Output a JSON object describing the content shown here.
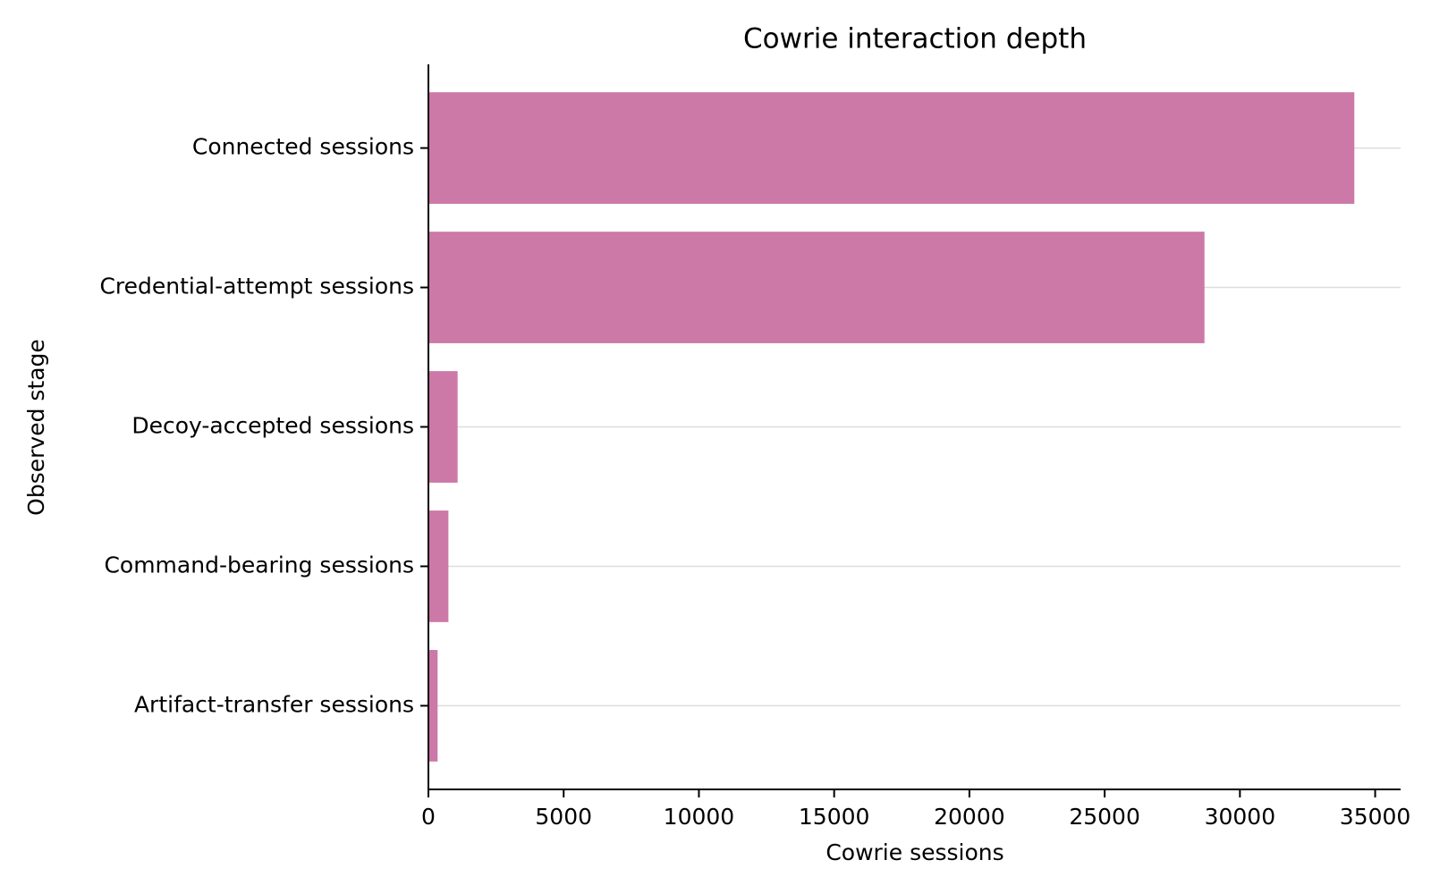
{
  "chart_data": {
    "type": "barh",
    "title": "Cowrie interaction depth",
    "x_label": "Cowrie sessions",
    "y_label": "Observed stage",
    "categories": [
      "Connected sessions",
      "Credential-attempt sessions",
      "Decoy-accepted sessions",
      "Command-bearing sessions",
      "Artifact-transfer sessions"
    ],
    "values": [
      34230,
      28690,
      1080,
      740,
      340
    ],
    "color": "#cc79a7",
    "xlim": [
      0,
      35940
    ],
    "xticks": [
      0,
      5000,
      10000,
      15000,
      20000,
      25000,
      30000,
      35000
    ],
    "grid": true
  }
}
